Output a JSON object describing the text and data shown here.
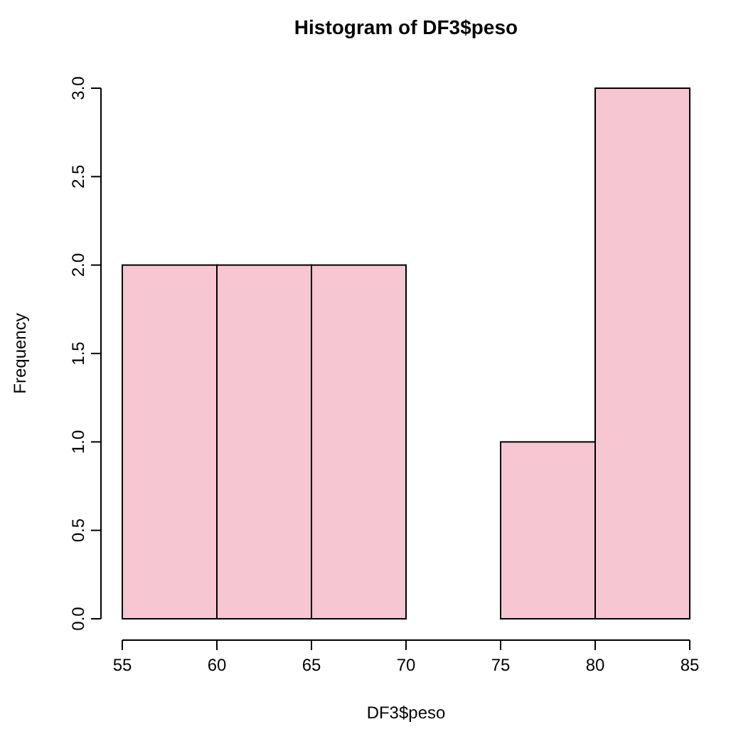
{
  "chart_data": {
    "type": "histogram",
    "title": "Histogram of DF3$peso",
    "xlabel": "DF3$peso",
    "ylabel": "Frequency",
    "bins": [
      55,
      60,
      65,
      70,
      75,
      80,
      85
    ],
    "values": [
      2,
      2,
      2,
      0,
      1,
      3
    ],
    "color": "#f7c6d3",
    "xlim": [
      55,
      85
    ],
    "xticks": [
      55,
      60,
      65,
      70,
      75,
      80,
      85
    ],
    "ylim": [
      0,
      3
    ],
    "yticks": [
      {
        "value": 0,
        "label": "0.0"
      },
      {
        "value": 0.5,
        "label": "0.5"
      },
      {
        "value": 1,
        "label": "1.0"
      },
      {
        "value": 1.5,
        "label": "1.5"
      },
      {
        "value": 2,
        "label": "2.0"
      },
      {
        "value": 2.5,
        "label": "2.5"
      },
      {
        "value": 3,
        "label": "3.0"
      }
    ],
    "grid": false
  }
}
